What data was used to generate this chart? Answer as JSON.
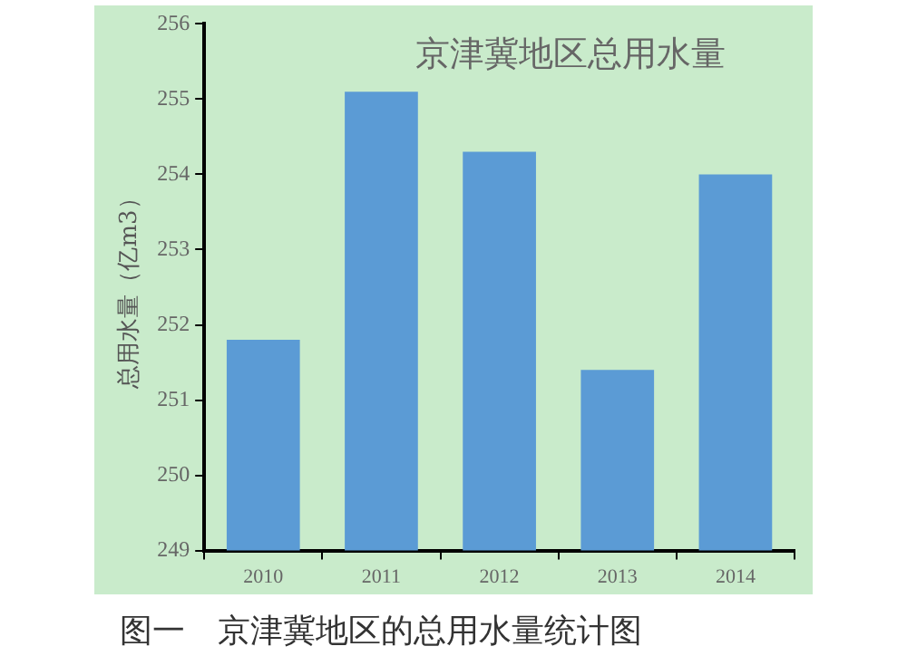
{
  "chart_data": {
    "type": "bar",
    "title": "京津冀地区总用水量",
    "ylabel": "总用水量（亿m3）",
    "categories": [
      "2010",
      "2011",
      "2012",
      "2013",
      "2014"
    ],
    "values": [
      251.8,
      255.1,
      254.3,
      251.4,
      254.0
    ],
    "color": "#5b9bd5",
    "ylim": [
      249,
      256
    ],
    "yticks": [
      249,
      250,
      251,
      252,
      253,
      254,
      255,
      256
    ],
    "grid": false,
    "legend": false,
    "annotations": [
      "图一　京津冀地区的总用水量统计图"
    ]
  }
}
